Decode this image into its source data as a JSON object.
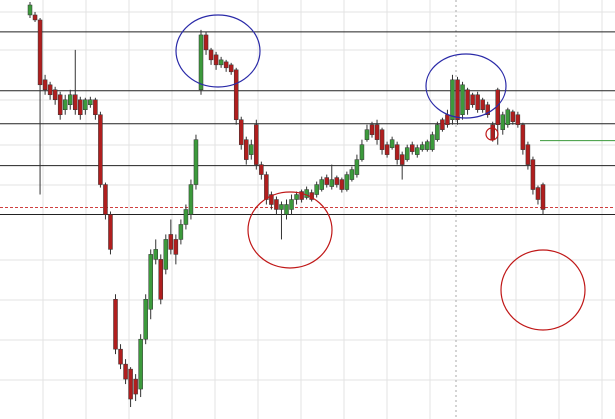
{
  "chart_data": {
    "type": "candlestick",
    "ylim": [
      0,
      420
    ],
    "up_color": "#3c9a3c",
    "down_color": "#b01e1e",
    "open": [
      405,
      405,
      400,
      340,
      335,
      330,
      325,
      310,
      315,
      325,
      320,
      310,
      315,
      320,
      305,
      235,
      205,
      120,
      70,
      55,
      50,
      40,
      30,
      80,
      110,
      160,
      160,
      150,
      185,
      180,
      180,
      195,
      205,
      235,
      330,
      385,
      370,
      365,
      355,
      358,
      355,
      350,
      300,
      280,
      265,
      295,
      255,
      245,
      225,
      220,
      210,
      205,
      210,
      220,
      228,
      222,
      227,
      225,
      230,
      242,
      233,
      242,
      240,
      230,
      240,
      245,
      260,
      280,
      295,
      295,
      290,
      275,
      272,
      275,
      265,
      260,
      275,
      265,
      270,
      270,
      270,
      280,
      300,
      305,
      300,
      340,
      305,
      330,
      325,
      325,
      320,
      315,
      295,
      330,
      290,
      295,
      308,
      305,
      295,
      275,
      260,
      232,
      235
    ],
    "close": [
      415,
      400,
      335,
      330,
      325,
      320,
      305,
      320,
      325,
      310,
      305,
      320,
      320,
      305,
      235,
      205,
      170,
      70,
      55,
      40,
      20,
      25,
      80,
      120,
      165,
      170,
      120,
      180,
      170,
      165,
      195,
      210,
      235,
      280,
      385,
      370,
      360,
      355,
      360,
      352,
      348,
      300,
      275,
      260,
      275,
      255,
      245,
      220,
      215,
      210,
      215,
      215,
      220,
      225,
      220,
      230,
      220,
      235,
      240,
      235,
      240,
      235,
      230,
      245,
      250,
      260,
      275,
      290,
      285,
      280,
      270,
      265,
      280,
      260,
      255,
      272,
      268,
      272,
      275,
      278,
      285,
      295,
      290,
      295,
      340,
      300,
      335,
      310,
      315,
      310,
      310,
      305,
      280,
      295,
      305,
      310,
      298,
      295,
      270,
      255,
      230,
      220,
      210
    ],
    "high": [
      418,
      408,
      402,
      345,
      338,
      333,
      328,
      325,
      330,
      370,
      323,
      322,
      323,
      322,
      308,
      237,
      208,
      125,
      75,
      60,
      52,
      45,
      85,
      125,
      170,
      180,
      165,
      185,
      200,
      185,
      200,
      215,
      240,
      285,
      390,
      388,
      372,
      368,
      363,
      360,
      357,
      352,
      303,
      283,
      280,
      300,
      258,
      248,
      228,
      223,
      218,
      220,
      225,
      228,
      230,
      233,
      230,
      238,
      243,
      245,
      255,
      244,
      242,
      248,
      253,
      265,
      280,
      295,
      298,
      300,
      292,
      278,
      283,
      278,
      268,
      275,
      278,
      275,
      278,
      280,
      288,
      298,
      302,
      310,
      345,
      343,
      338,
      332,
      327,
      328,
      322,
      318,
      298,
      332,
      308,
      312,
      310,
      308,
      297,
      278,
      263,
      234,
      237
    ],
    "low": [
      402,
      398,
      225,
      325,
      320,
      315,
      300,
      305,
      310,
      305,
      300,
      305,
      312,
      300,
      232,
      200,
      165,
      65,
      50,
      35,
      12,
      18,
      22,
      75,
      100,
      155,
      115,
      145,
      165,
      155,
      175,
      190,
      200,
      230,
      325,
      365,
      355,
      350,
      352,
      348,
      345,
      295,
      270,
      255,
      260,
      250,
      240,
      215,
      210,
      205,
      180,
      200,
      205,
      215,
      217,
      220,
      218,
      222,
      228,
      232,
      230,
      232,
      227,
      228,
      238,
      242,
      258,
      278,
      282,
      275,
      265,
      262,
      270,
      255,
      240,
      258,
      265,
      262,
      268,
      268,
      268,
      278,
      288,
      292,
      295,
      295,
      300,
      305,
      312,
      307,
      307,
      302,
      278,
      275,
      285,
      292,
      295,
      292,
      265,
      250,
      225,
      215,
      205
    ],
    "levels": [
      388,
      329,
      296,
      254,
      205
    ],
    "dashed_level": 212,
    "target_level": 279
  }
}
